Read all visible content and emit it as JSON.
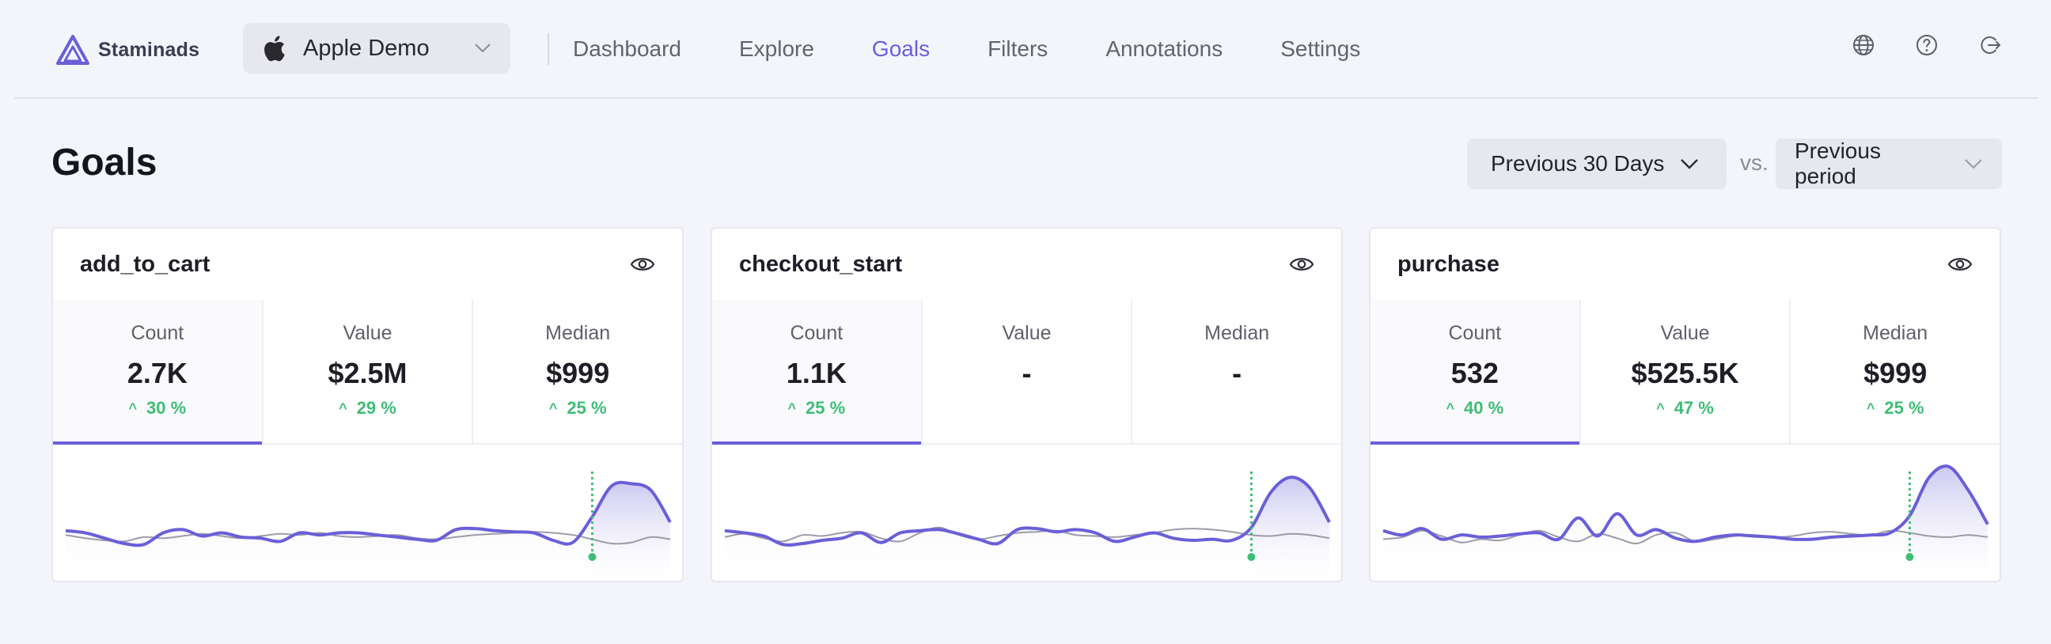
{
  "brand": {
    "name": "Staminads",
    "logo_icon": "triangle-logo-icon"
  },
  "site_select": {
    "name": "Apple Demo",
    "icon": "apple-icon"
  },
  "nav": [
    {
      "label": "Dashboard",
      "active": false
    },
    {
      "label": "Explore",
      "active": false
    },
    {
      "label": "Goals",
      "active": true
    },
    {
      "label": "Filters",
      "active": false
    },
    {
      "label": "Annotations",
      "active": false
    },
    {
      "label": "Settings",
      "active": false
    }
  ],
  "top_icons": [
    "globe-icon",
    "help-icon",
    "logout-icon"
  ],
  "page": {
    "title": "Goals",
    "range_label": "Previous 30 Days",
    "vs_label": "vs.",
    "compare_label": "Previous period"
  },
  "colors": {
    "accent": "#6a5fd8",
    "positive": "#3dbd75",
    "previous": "#9c9ca8",
    "background": "#f4f5fb"
  },
  "goals": [
    {
      "name": "add_to_cart",
      "metrics": [
        {
          "label": "Count",
          "value": "2.7K",
          "change": "30 %"
        },
        {
          "label": "Value",
          "value": "$2.5M",
          "change": "29 %"
        },
        {
          "label": "Median",
          "value": "$999",
          "change": "25 %"
        }
      ],
      "chart_data": {
        "type": "area",
        "series": [
          {
            "values": [
              32,
              30,
              25,
              20,
              19,
              30,
              33,
              27,
              30,
              26,
              25,
              22,
              30,
              28,
              30,
              30,
              28,
              26,
              24,
              23,
              33,
              34,
              32,
              31,
              30,
              23,
              21,
              45,
              74,
              76,
              70,
              40
            ]
          },
          {
            "values": [
              28,
              25,
              23,
              22,
              26,
              25,
              27,
              29,
              27,
              25,
              27,
              29,
              28,
              30,
              27,
              26,
              27,
              28,
              25,
              24,
              26,
              28,
              29,
              30,
              31,
              30,
              28,
              24,
              20,
              21,
              26,
              24
            ]
          }
        ],
        "marker_index": 27
      }
    },
    {
      "name": "checkout_start",
      "metrics": [
        {
          "label": "Count",
          "value": "1.1K",
          "change": "25 %"
        },
        {
          "label": "Value",
          "value": "-",
          "change": ""
        },
        {
          "label": "Median",
          "value": "-",
          "change": ""
        }
      ],
      "chart_data": {
        "type": "area",
        "series": [
          {
            "values": [
              32,
              30,
              27,
              19,
              20,
              23,
              25,
              30,
              21,
              30,
              32,
              33,
              29,
              24,
              20,
              33,
              34,
              31,
              33,
              30,
              22,
              26,
              30,
              25,
              23,
              24,
              23,
              35,
              68,
              82,
              72,
              40
            ]
          },
          {
            "values": [
              26,
              29,
              25,
              22,
              28,
              27,
              30,
              31,
              25,
              22,
              30,
              35,
              28,
              24,
              27,
              30,
              31,
              32,
              28,
              27,
              26,
              28,
              30,
              33,
              34,
              33,
              31,
              28,
              27,
              29,
              28,
              25
            ]
          }
        ],
        "marker_index": 27
      }
    },
    {
      "name": "purchase",
      "metrics": [
        {
          "label": "Count",
          "value": "532",
          "change": "40 %"
        },
        {
          "label": "Value",
          "value": "$525.5K",
          "change": "47 %"
        },
        {
          "label": "Median",
          "value": "$999",
          "change": "25 %"
        }
      ],
      "chart_data": {
        "type": "area",
        "series": [
          {
            "values": [
              32,
              28,
              34,
              24,
              28,
              26,
              27,
              29,
              30,
              24,
              44,
              27,
              48,
              28,
              33,
              25,
              22,
              26,
              28,
              27,
              26,
              24,
              24,
              26,
              27,
              28,
              30,
              46,
              82,
              92,
              70,
              38
            ]
          },
          {
            "values": [
              24,
              26,
              32,
              27,
              21,
              24,
              23,
              28,
              32,
              26,
              22,
              29,
              25,
              20,
              28,
              30,
              22,
              24,
              27,
              28,
              26,
              27,
              30,
              31,
              29,
              28,
              32,
              30,
              27,
              26,
              28,
              26
            ]
          }
        ],
        "marker_index": 27
      }
    }
  ]
}
